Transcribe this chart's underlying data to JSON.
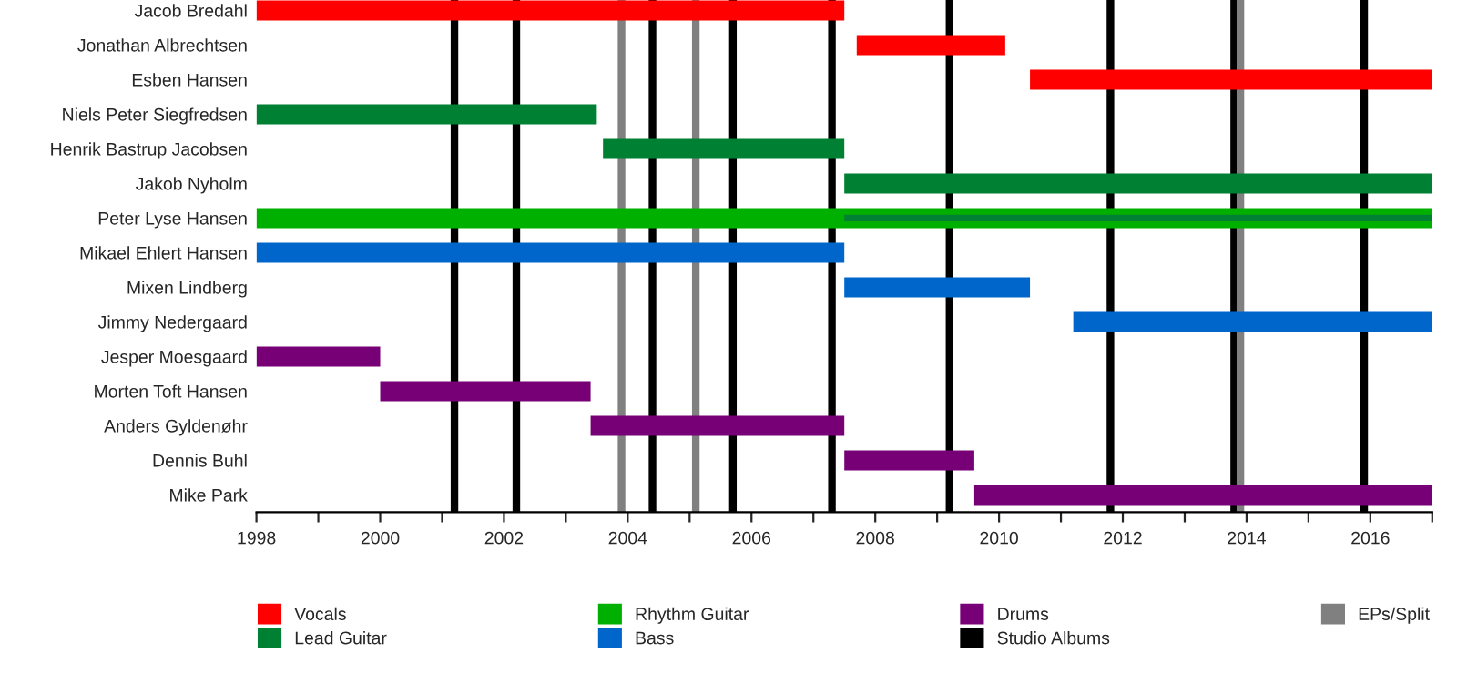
{
  "chart_data": {
    "type": "bar",
    "orientation": "horizontal",
    "categories": [
      "Jacob Bredahl",
      "Jonathan Albrechtsen",
      "Esben Hansen",
      "Niels Peter Siegfredsen",
      "Henrik Bastrup Jacobsen",
      "Jakob Nyholm",
      "Peter Lyse Hansen",
      "Mikael Ehlert Hansen",
      "Mixen Lindberg",
      "Jimmy Nedergaard",
      "Jesper Moesgaard",
      "Morten Toft Hansen",
      "Anders Gyldenøhr",
      "Dennis Buhl",
      "Mike Park"
    ],
    "series": [
      {
        "name": "Vocals",
        "color": "#ff0000",
        "base": [
          1998,
          2007.7,
          2010.5,
          null,
          null,
          null,
          null,
          null,
          null,
          null,
          null,
          null,
          null,
          null,
          null
        ],
        "values": [
          9.5,
          2.4,
          6.5,
          null,
          null,
          null,
          null,
          null,
          null,
          null,
          null,
          null,
          null,
          null,
          null
        ]
      },
      {
        "name": "Lead Guitar",
        "color": "#008033",
        "base": [
          null,
          null,
          null,
          1998,
          2003.6,
          2007.5,
          null,
          null,
          null,
          null,
          null,
          null,
          null,
          null,
          null
        ],
        "values": [
          null,
          null,
          null,
          5.5,
          3.9,
          9.5,
          null,
          null,
          null,
          null,
          null,
          null,
          null,
          null,
          null
        ]
      },
      {
        "name": "Rhythm Guitar",
        "color": "#00b000",
        "base": [
          null,
          null,
          null,
          null,
          null,
          null,
          1998,
          null,
          null,
          null,
          null,
          null,
          null,
          null,
          null
        ],
        "values": [
          null,
          null,
          null,
          null,
          null,
          null,
          19,
          null,
          null,
          null,
          null,
          null,
          null,
          null,
          null
        ]
      },
      {
        "name": "Bass",
        "color": "#0066cc",
        "base": [
          null,
          null,
          null,
          null,
          null,
          null,
          null,
          1998,
          2007.5,
          2011.2,
          null,
          null,
          null,
          null,
          null
        ],
        "values": [
          null,
          null,
          null,
          null,
          null,
          null,
          null,
          9.5,
          3.0,
          5.8,
          null,
          null,
          null,
          null,
          null
        ]
      },
      {
        "name": "Drums",
        "color": "#770077",
        "base": [
          null,
          null,
          null,
          null,
          null,
          null,
          null,
          null,
          null,
          null,
          1998,
          2000,
          2003.4,
          2007.5,
          2009.6
        ],
        "values": [
          null,
          null,
          null,
          null,
          null,
          null,
          null,
          null,
          null,
          null,
          2.0,
          3.4,
          4.1,
          2.1,
          7.4
        ]
      },
      {
        "color": "#008033",
        "base": [
          null,
          null,
          null,
          null,
          null,
          null,
          2007.5,
          null,
          null,
          null,
          null,
          null,
          null,
          null,
          null
        ],
        "values": [
          null,
          null,
          null,
          null,
          null,
          null,
          9.5,
          null,
          null,
          null,
          null,
          null,
          null,
          null,
          null
        ]
      }
    ],
    "ref_lines": [
      {
        "axis": "x",
        "value": 2001.2,
        "label": "Studio Albums",
        "color": "#000000"
      },
      {
        "axis": "x",
        "value": 2002.2,
        "color": "#000000"
      },
      {
        "axis": "x",
        "value": 2003.9,
        "label": "EPs/Split",
        "color": "#808080"
      },
      {
        "axis": "x",
        "value": 2004.4,
        "color": "#000000"
      },
      {
        "axis": "x",
        "value": 2005.1,
        "color": "#808080"
      },
      {
        "axis": "x",
        "value": 2005.7,
        "color": "#000000"
      },
      {
        "axis": "x",
        "value": 2007.3,
        "color": "#000000"
      },
      {
        "axis": "x",
        "value": 2009.2,
        "color": "#000000"
      },
      {
        "axis": "x",
        "value": 2011.8,
        "color": "#000000"
      },
      {
        "axis": "x",
        "value": 2013.8,
        "color": "#000000"
      },
      {
        "axis": "x",
        "value": 2013.9,
        "color": "#808080"
      },
      {
        "axis": "x",
        "value": 2015.9,
        "color": "#000000"
      }
    ],
    "xlim": [
      1998,
      2017
    ],
    "xticks": [
      1998,
      {
        "value": 1999,
        "label": null
      },
      2000,
      {
        "value": 2001,
        "label": null
      },
      2002,
      {
        "value": 2003,
        "label": null
      },
      2004,
      {
        "value": 2005,
        "label": null
      },
      2006,
      {
        "value": 2007,
        "label": null
      },
      2008,
      {
        "value": 2009,
        "label": null
      },
      2010,
      {
        "value": 2011,
        "label": null
      },
      2012,
      {
        "value": 2013,
        "label": null
      },
      2014,
      {
        "value": 2015,
        "label": null
      },
      2016,
      {
        "value": 2017,
        "label": null
      }
    ],
    "grid": false,
    "legend": "bottom"
  }
}
